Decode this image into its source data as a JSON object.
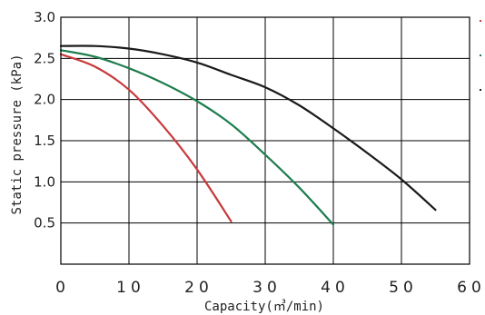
{
  "chart_data": {
    "type": "line",
    "title": "",
    "xlabel": "Capacity(㎥/min)",
    "ylabel": "Static pressure (kPa)",
    "xlim": [
      0,
      60
    ],
    "ylim": [
      0,
      3.0
    ],
    "x_ticks": [
      "0",
      "10",
      "20",
      "30",
      "40",
      "50",
      "60"
    ],
    "y_ticks": [
      "0.5",
      "1.0",
      "1.5",
      "2.0",
      "2.5",
      "3.0"
    ],
    "y_tick_values": [
      0.5,
      1.0,
      1.5,
      2.0,
      2.5,
      3.0
    ],
    "x_tick_values": [
      0,
      10,
      20,
      30,
      40,
      50,
      60
    ],
    "grid": true,
    "legend": "right",
    "series": [
      {
        "color": "#c8393b",
        "x": [
          0,
          5,
          10,
          15,
          20,
          25
        ],
        "y": [
          2.55,
          2.4,
          2.12,
          1.68,
          1.15,
          0.52
        ]
      },
      {
        "color": "#1e7d4e",
        "x": [
          0,
          5,
          10,
          15,
          20,
          25,
          30,
          35,
          40
        ],
        "y": [
          2.6,
          2.52,
          2.38,
          2.2,
          1.98,
          1.7,
          1.33,
          0.93,
          0.48
        ]
      },
      {
        "color": "#1a1a1a",
        "x": [
          0,
          5,
          10,
          15,
          20,
          25,
          30,
          35,
          40,
          45,
          50,
          55
        ],
        "y": [
          2.65,
          2.65,
          2.62,
          2.55,
          2.45,
          2.3,
          2.15,
          1.93,
          1.65,
          1.35,
          1.03,
          0.66
        ]
      }
    ]
  }
}
